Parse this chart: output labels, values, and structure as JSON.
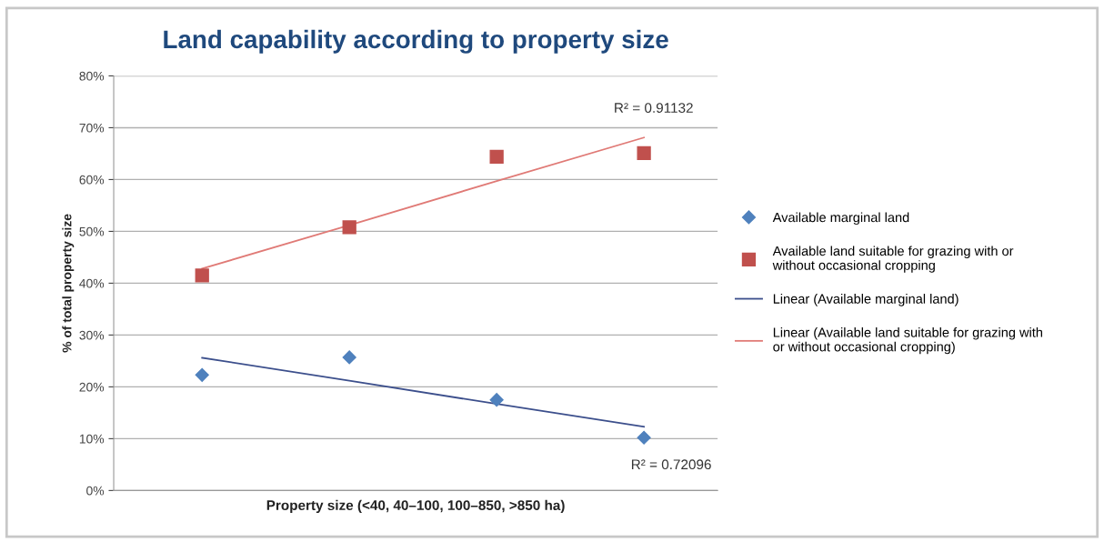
{
  "chart_data": {
    "type": "scatter",
    "title": "Land capability according to property size",
    "xlabel": "Property size (<40, 40–100, 100–850, >850 ha)",
    "ylabel": "% of total property size",
    "categories": [
      null,
      null,
      null,
      null
    ],
    "series": [
      {
        "name": "Available marginal land",
        "marker": "diamond",
        "color": "#4f81bd",
        "values": [
          22.3,
          25.7,
          17.5,
          10.2
        ]
      },
      {
        "name": "Available land suitable for grazing with or without occasional cropping",
        "marker": "square",
        "color": "#c0504d",
        "values": [
          41.5,
          50.8,
          64.4,
          65.1
        ]
      },
      {
        "name": "Linear (Available marginal land)",
        "type": "line",
        "marker": "none",
        "color": "#3c4f8c",
        "values": [
          25.6,
          21.2,
          16.7,
          12.3
        ]
      },
      {
        "name": "Linear (Available land suitable for grazing with or without occasional cropping)",
        "type": "line",
        "marker": "none",
        "color": "#e07a76",
        "values": [
          42.8,
          51.2,
          59.7,
          68.1
        ]
      }
    ],
    "annotations": [
      "R² = 0.91132",
      "R² = 0.72096"
    ],
    "ylim": [
      0,
      80
    ],
    "yticks": [
      {
        "value": 0,
        "label": "0%"
      },
      {
        "value": 10,
        "label": "10%"
      },
      {
        "value": 20,
        "label": "20%"
      },
      {
        "value": 30,
        "label": "30%"
      },
      {
        "value": 40,
        "label": "40%"
      },
      {
        "value": 50,
        "label": "50%"
      },
      {
        "value": 60,
        "label": "60%"
      },
      {
        "value": 70,
        "label": "70%"
      },
      {
        "value": 80,
        "label": "80%"
      }
    ],
    "grid": "y",
    "legend": "right"
  }
}
